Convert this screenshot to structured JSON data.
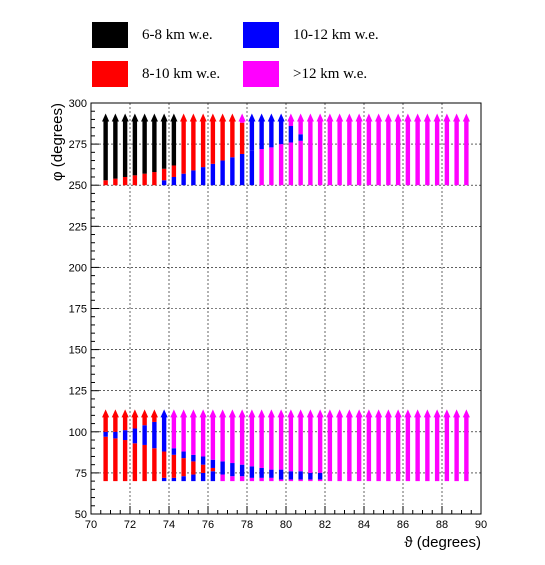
{
  "chart_data": {
    "type": "scatter",
    "title": "",
    "xlabel": "ϑ (degrees)",
    "ylabel": "φ (degrees)",
    "xlim": [
      70,
      90
    ],
    "ylim": [
      50,
      300
    ],
    "xticks": [
      "70",
      "72",
      "74",
      "76",
      "78",
      "80",
      "82",
      "84",
      "86",
      "88",
      "90"
    ],
    "yticks": [
      "50",
      "75",
      "100",
      "125",
      "150",
      "175",
      "200",
      "225",
      "250",
      "275",
      "300"
    ],
    "grid": true,
    "legend_placement": "top",
    "series": [
      {
        "name": "6-8 km w.e.",
        "color": "#000000"
      },
      {
        "name": "10-12 km w.e.",
        "color": "#0000ff"
      },
      {
        "name": "8-10 km w.e.",
        "color": "#ff0000"
      },
      {
        "name": ">12 km w.e.",
        "color": "#ff00ff"
      }
    ],
    "theta_columns": [
      70.75,
      71.25,
      71.75,
      72.25,
      72.75,
      73.25,
      73.75,
      74.25,
      74.75,
      75.25,
      75.75,
      76.25,
      76.75,
      77.25,
      77.75,
      78.25,
      78.75,
      79.25,
      79.75,
      80.25,
      80.75,
      81.25,
      81.75,
      82.25,
      82.75,
      83.25,
      83.75,
      84.25,
      84.75,
      85.25,
      85.75,
      86.25,
      86.75,
      87.25,
      87.75,
      88.25,
      88.75,
      89.25
    ],
    "upper_band": {
      "phi_range": [
        250,
        290
      ],
      "segments": [
        [
          [
            250,
            253,
            "8-10"
          ],
          [
            253,
            290,
            "6-8"
          ]
        ],
        [
          [
            250,
            254,
            "8-10"
          ],
          [
            254,
            290,
            "6-8"
          ]
        ],
        [
          [
            250,
            255,
            "8-10"
          ],
          [
            255,
            290,
            "6-8"
          ]
        ],
        [
          [
            250,
            256,
            "8-10"
          ],
          [
            256,
            290,
            "6-8"
          ]
        ],
        [
          [
            250,
            257,
            "8-10"
          ],
          [
            257,
            290,
            "6-8"
          ]
        ],
        [
          [
            250,
            258,
            "8-10"
          ],
          [
            258,
            290,
            "6-8"
          ]
        ],
        [
          [
            250,
            253,
            "10-12"
          ],
          [
            253,
            260,
            "8-10"
          ],
          [
            260,
            290,
            "6-8"
          ]
        ],
        [
          [
            250,
            255,
            "10-12"
          ],
          [
            255,
            262,
            "8-10"
          ],
          [
            262,
            290,
            "6-8"
          ]
        ],
        [
          [
            250,
            257,
            "10-12"
          ],
          [
            257,
            290,
            "8-10"
          ]
        ],
        [
          [
            250,
            259,
            "10-12"
          ],
          [
            259,
            290,
            "8-10"
          ]
        ],
        [
          [
            250,
            261,
            "10-12"
          ],
          [
            261,
            290,
            "8-10"
          ]
        ],
        [
          [
            250,
            263,
            "10-12"
          ],
          [
            263,
            290,
            "8-10"
          ]
        ],
        [
          [
            250,
            265,
            "10-12"
          ],
          [
            265,
            290,
            "8-10"
          ]
        ],
        [
          [
            250,
            267,
            "10-12"
          ],
          [
            267,
            290,
            "8-10"
          ]
        ],
        [
          [
            250,
            269,
            "10-12"
          ],
          [
            269,
            288,
            "8-10"
          ],
          [
            288,
            290,
            ">12"
          ]
        ],
        [
          [
            250,
            271,
            "10-12"
          ],
          [
            271,
            290,
            "10-12"
          ]
        ],
        [
          [
            250,
            272,
            ">12"
          ],
          [
            272,
            290,
            "10-12"
          ]
        ],
        [
          [
            250,
            273,
            ">12"
          ],
          [
            273,
            290,
            "10-12"
          ]
        ],
        [
          [
            250,
            275,
            ">12"
          ],
          [
            275,
            290,
            "10-12"
          ]
        ],
        [
          [
            250,
            276,
            ">12"
          ],
          [
            276,
            286,
            "10-12"
          ],
          [
            286,
            290,
            ">12"
          ]
        ],
        [
          [
            250,
            277,
            ">12"
          ],
          [
            277,
            281,
            "10-12"
          ],
          [
            281,
            290,
            ">12"
          ]
        ],
        [
          [
            250,
            290,
            ">12"
          ]
        ],
        [
          [
            250,
            290,
            ">12"
          ]
        ],
        [
          [
            250,
            290,
            ">12"
          ]
        ],
        [
          [
            250,
            290,
            ">12"
          ]
        ],
        [
          [
            250,
            290,
            ">12"
          ]
        ],
        [
          [
            250,
            290,
            ">12"
          ]
        ],
        [
          [
            250,
            290,
            ">12"
          ]
        ],
        [
          [
            250,
            290,
            ">12"
          ]
        ],
        [
          [
            250,
            290,
            ">12"
          ]
        ],
        [
          [
            250,
            290,
            ">12"
          ]
        ],
        [
          [
            250,
            290,
            ">12"
          ]
        ],
        [
          [
            250,
            290,
            ">12"
          ]
        ],
        [
          [
            250,
            290,
            ">12"
          ]
        ],
        [
          [
            250,
            290,
            ">12"
          ]
        ],
        [
          [
            250,
            290,
            ">12"
          ]
        ],
        [
          [
            250,
            290,
            ">12"
          ]
        ],
        [
          [
            250,
            290,
            ">12"
          ]
        ]
      ]
    },
    "lower_band": {
      "phi_range": [
        70,
        110
      ],
      "segments": [
        [
          [
            70,
            97,
            "8-10"
          ],
          [
            97,
            100,
            "10-12"
          ],
          [
            100,
            110,
            "8-10"
          ]
        ],
        [
          [
            70,
            96,
            "8-10"
          ],
          [
            96,
            100,
            "10-12"
          ],
          [
            100,
            110,
            "8-10"
          ]
        ],
        [
          [
            70,
            95,
            "8-10"
          ],
          [
            95,
            101,
            "10-12"
          ],
          [
            101,
            110,
            "8-10"
          ]
        ],
        [
          [
            70,
            93,
            "8-10"
          ],
          [
            93,
            102,
            "10-12"
          ],
          [
            102,
            110,
            "8-10"
          ]
        ],
        [
          [
            70,
            92,
            "8-10"
          ],
          [
            92,
            104,
            "10-12"
          ],
          [
            104,
            110,
            "8-10"
          ]
        ],
        [
          [
            70,
            90,
            "8-10"
          ],
          [
            90,
            106,
            "10-12"
          ],
          [
            106,
            110,
            "8-10"
          ]
        ],
        [
          [
            70,
            72,
            "10-12"
          ],
          [
            72,
            88,
            "8-10"
          ],
          [
            88,
            110,
            "10-12"
          ]
        ],
        [
          [
            70,
            72,
            "10-12"
          ],
          [
            72,
            86,
            "8-10"
          ],
          [
            86,
            90,
            "10-12"
          ],
          [
            90,
            110,
            ">12"
          ]
        ],
        [
          [
            70,
            73,
            "10-12"
          ],
          [
            73,
            84,
            "8-10"
          ],
          [
            84,
            88,
            "10-12"
          ],
          [
            88,
            110,
            ">12"
          ]
        ],
        [
          [
            70,
            74,
            "10-12"
          ],
          [
            74,
            82,
            "8-10"
          ],
          [
            82,
            86,
            "10-12"
          ],
          [
            86,
            110,
            ">12"
          ]
        ],
        [
          [
            70,
            75,
            "10-12"
          ],
          [
            75,
            80,
            "8-10"
          ],
          [
            80,
            85,
            "10-12"
          ],
          [
            85,
            110,
            ">12"
          ]
        ],
        [
          [
            70,
            76,
            "10-12"
          ],
          [
            76,
            78,
            "8-10"
          ],
          [
            78,
            83,
            "10-12"
          ],
          [
            83,
            110,
            ">12"
          ]
        ],
        [
          [
            70,
            74,
            ">12"
          ],
          [
            74,
            82,
            "10-12"
          ],
          [
            82,
            110,
            ">12"
          ]
        ],
        [
          [
            70,
            73,
            ">12"
          ],
          [
            73,
            81,
            "10-12"
          ],
          [
            81,
            110,
            ">12"
          ]
        ],
        [
          [
            70,
            73,
            ">12"
          ],
          [
            73,
            80,
            "10-12"
          ],
          [
            80,
            110,
            ">12"
          ]
        ],
        [
          [
            70,
            72,
            ">12"
          ],
          [
            72,
            79,
            "10-12"
          ],
          [
            79,
            110,
            ">12"
          ]
        ],
        [
          [
            70,
            72,
            ">12"
          ],
          [
            72,
            78,
            "10-12"
          ],
          [
            78,
            110,
            ">12"
          ]
        ],
        [
          [
            70,
            72,
            ">12"
          ],
          [
            72,
            77,
            "10-12"
          ],
          [
            77,
            110,
            ">12"
          ]
        ],
        [
          [
            70,
            71,
            ">12"
          ],
          [
            71,
            77,
            "10-12"
          ],
          [
            77,
            110,
            ">12"
          ]
        ],
        [
          [
            70,
            71,
            ">12"
          ],
          [
            71,
            76,
            "10-12"
          ],
          [
            76,
            110,
            ">12"
          ]
        ],
        [
          [
            70,
            71,
            ">12"
          ],
          [
            71,
            76,
            "10-12"
          ],
          [
            76,
            110,
            ">12"
          ]
        ],
        [
          [
            70,
            71,
            ">12"
          ],
          [
            71,
            75,
            "10-12"
          ],
          [
            75,
            110,
            ">12"
          ]
        ],
        [
          [
            70,
            71,
            ">12"
          ],
          [
            71,
            75,
            "10-12"
          ],
          [
            75,
            110,
            ">12"
          ]
        ],
        [
          [
            70,
            110,
            ">12"
          ]
        ],
        [
          [
            70,
            110,
            ">12"
          ]
        ],
        [
          [
            70,
            110,
            ">12"
          ]
        ],
        [
          [
            70,
            110,
            ">12"
          ]
        ],
        [
          [
            70,
            110,
            ">12"
          ]
        ],
        [
          [
            70,
            110,
            ">12"
          ]
        ],
        [
          [
            70,
            110,
            ">12"
          ]
        ],
        [
          [
            70,
            110,
            ">12"
          ]
        ],
        [
          [
            70,
            110,
            ">12"
          ]
        ],
        [
          [
            70,
            110,
            ">12"
          ]
        ],
        [
          [
            70,
            110,
            ">12"
          ]
        ],
        [
          [
            70,
            110,
            ">12"
          ]
        ],
        [
          [
            70,
            110,
            ">12"
          ]
        ],
        [
          [
            70,
            110,
            ">12"
          ]
        ],
        [
          [
            70,
            110,
            ">12"
          ]
        ]
      ]
    }
  }
}
